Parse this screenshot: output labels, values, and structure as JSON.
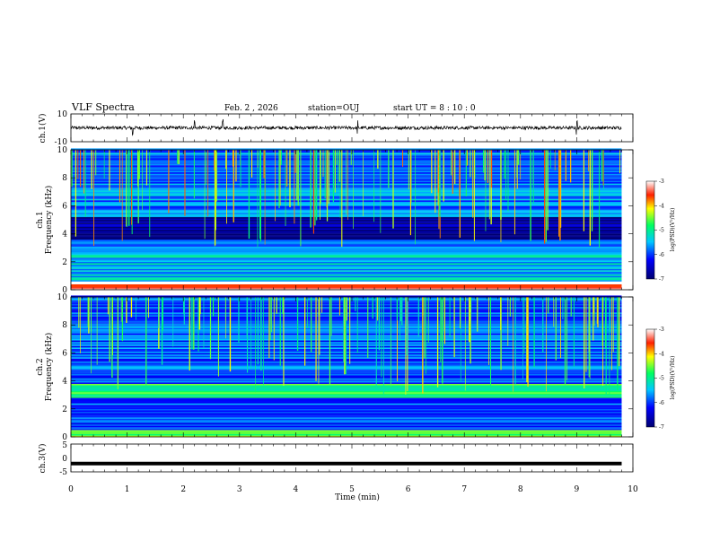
{
  "header": {
    "title": "VLF Spectra",
    "date": "Feb. 2 , 2026",
    "station": "station=OUJ",
    "start": "start UT =  8 : 10 : 0"
  },
  "chart_data": [
    {
      "type": "line",
      "name": "ch1-waveform",
      "ylabel": "ch.1(V)",
      "ylim": [
        -10,
        10
      ],
      "yticks": [
        "10",
        "-10"
      ],
      "x_range_min": [
        0,
        9.8
      ],
      "baseline_v": 0,
      "noise_amplitude_v": 1.2,
      "spike_times_min": [
        1.1,
        2.2,
        2.7,
        5.1,
        9.0
      ]
    },
    {
      "type": "heatmap",
      "name": "ch1-spectrogram",
      "ylabel": "ch.1\nFrequency (kHz)",
      "ylim": [
        0,
        10
      ],
      "yticks": [
        "0",
        "2",
        "4",
        "6",
        "8",
        "10"
      ],
      "x_range_min": [
        0,
        9.8
      ],
      "color_scale": {
        "min": -7,
        "max": -3,
        "label": "log(PSD)(V²/Hz)",
        "ticks": [
          "-3",
          "-4",
          "-5",
          "-6",
          "-7"
        ]
      },
      "bands": [
        {
          "f_kHz": [
            0,
            0.6
          ],
          "level": -3.2
        },
        {
          "f_kHz": [
            0.6,
            2.5
          ],
          "level": -5.4
        },
        {
          "f_kHz": [
            2.5,
            3.6
          ],
          "level": -5.6
        },
        {
          "f_kHz": [
            3.6,
            5.2
          ],
          "level": -6.8
        },
        {
          "f_kHz": [
            5.2,
            10
          ],
          "level": -5.8
        }
      ],
      "sferic_level": -4.3
    },
    {
      "type": "heatmap",
      "name": "ch2-spectrogram",
      "ylabel": "ch.2\nFrequency (kHz)",
      "ylim": [
        0,
        10
      ],
      "yticks": [
        "0",
        "2",
        "4",
        "6",
        "8",
        "10"
      ],
      "x_range_min": [
        0,
        9.8
      ],
      "color_scale": {
        "min": -7,
        "max": -3,
        "label": "log(PSD)(V²/Hz)",
        "ticks": [
          "-3",
          "-4",
          "-5",
          "-6",
          "-7"
        ]
      },
      "bands": [
        {
          "f_kHz": [
            0,
            0.5
          ],
          "level": -4.6
        },
        {
          "f_kHz": [
            0.5,
            2.8
          ],
          "level": -5.9
        },
        {
          "f_kHz": [
            2.8,
            3.8
          ],
          "level": -4.8
        },
        {
          "f_kHz": [
            3.8,
            10
          ],
          "level": -5.9
        }
      ],
      "sferic_level": -4.6
    },
    {
      "type": "line",
      "name": "ch3-waveform",
      "ylabel": "ch.3(V)",
      "ylim": [
        -5,
        5
      ],
      "yticks": [
        "5",
        "0",
        "-5"
      ],
      "x_range_min": [
        0,
        9.8
      ],
      "baseline_v": -2.0
    }
  ],
  "xaxis": {
    "label": "Time (min)",
    "min": 0,
    "max": 10,
    "ticks": [
      "0",
      "1",
      "2",
      "3",
      "4",
      "5",
      "6",
      "7",
      "8",
      "9",
      "10"
    ]
  }
}
